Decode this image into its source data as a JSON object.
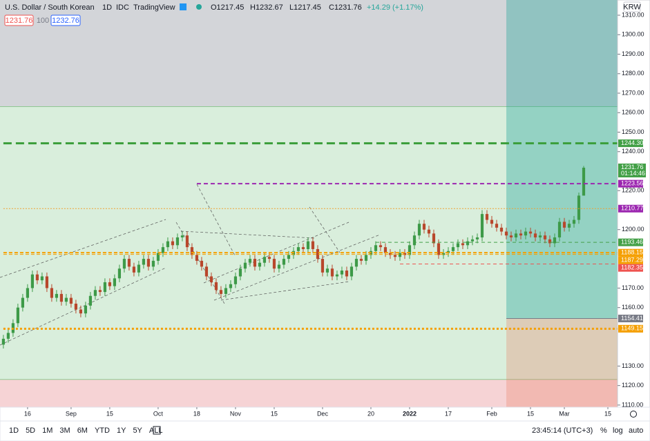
{
  "header": {
    "symbol": "U.S. Dollar / South Korean",
    "interval": "1D",
    "exchange": "IDC",
    "source": "TradingView",
    "o": "O1217.45",
    "h": "H1232.67",
    "l": "L1217.45",
    "c": "C1231.76",
    "change": "+14.29 (+1.17%)",
    "bid": "1231.76",
    "spread": "100",
    "ask": "1232.76",
    "currency": "KRW"
  },
  "toolbar": {
    "ranges": [
      "1D",
      "5D",
      "1M",
      "3M",
      "6M",
      "YTD",
      "1Y",
      "5Y",
      "ALL"
    ],
    "clock": "23:45:14 (UTC+3)",
    "percent": "%",
    "log": "log",
    "auto": "auto"
  },
  "chart_data": {
    "type": "candlestick",
    "up_color": "#3d9a48",
    "down_color": "#b8472c",
    "ohlc": [
      [
        1141,
        1146,
        1139,
        1144
      ],
      [
        1144,
        1149,
        1142,
        1147
      ],
      [
        1147,
        1154,
        1145,
        1152
      ],
      [
        1152,
        1162,
        1150,
        1160
      ],
      [
        1160,
        1167,
        1158,
        1165
      ],
      [
        1165,
        1172,
        1163,
        1170
      ],
      [
        1170,
        1179,
        1168,
        1177
      ],
      [
        1177,
        1179,
        1172,
        1174
      ],
      [
        1174,
        1178,
        1172,
        1176
      ],
      [
        1176,
        1178,
        1168,
        1170
      ],
      [
        1170,
        1172,
        1163,
        1165
      ],
      [
        1165,
        1169,
        1163,
        1167
      ],
      [
        1167,
        1169,
        1161,
        1163
      ],
      [
        1163,
        1167,
        1161,
        1165
      ],
      [
        1165,
        1167,
        1160,
        1162
      ],
      [
        1162,
        1164,
        1157,
        1159
      ],
      [
        1159,
        1161,
        1155,
        1157
      ],
      [
        1157,
        1163,
        1155,
        1161
      ],
      [
        1161,
        1168,
        1159,
        1166
      ],
      [
        1166,
        1171,
        1164,
        1169
      ],
      [
        1169,
        1171,
        1166,
        1168
      ],
      [
        1168,
        1175,
        1166,
        1173
      ],
      [
        1173,
        1175,
        1169,
        1171
      ],
      [
        1171,
        1177,
        1169,
        1175
      ],
      [
        1175,
        1182,
        1173,
        1180
      ],
      [
        1180,
        1187,
        1178,
        1185
      ],
      [
        1185,
        1187,
        1179,
        1181
      ],
      [
        1181,
        1183,
        1176,
        1178
      ],
      [
        1178,
        1184,
        1176,
        1182
      ],
      [
        1182,
        1187,
        1180,
        1185
      ],
      [
        1185,
        1187,
        1179,
        1181
      ],
      [
        1181,
        1186,
        1179,
        1184
      ],
      [
        1184,
        1190,
        1182,
        1188
      ],
      [
        1188,
        1193,
        1186,
        1191
      ],
      [
        1191,
        1196,
        1189,
        1194
      ],
      [
        1194,
        1196,
        1190,
        1192
      ],
      [
        1192,
        1198,
        1190,
        1196
      ],
      [
        1196,
        1199,
        1194,
        1197
      ],
      [
        1197,
        1199,
        1189,
        1191
      ],
      [
        1191,
        1193,
        1185,
        1187
      ],
      [
        1187,
        1189,
        1182,
        1184
      ],
      [
        1184,
        1186,
        1179,
        1181
      ],
      [
        1181,
        1183,
        1174,
        1176
      ],
      [
        1176,
        1178,
        1171,
        1173
      ],
      [
        1173,
        1175,
        1167,
        1169
      ],
      [
        1169,
        1171,
        1165,
        1167
      ],
      [
        1167,
        1172,
        1165,
        1170
      ],
      [
        1170,
        1174,
        1168,
        1172
      ],
      [
        1172,
        1178,
        1170,
        1176
      ],
      [
        1176,
        1182,
        1174,
        1180
      ],
      [
        1180,
        1185,
        1178,
        1183
      ],
      [
        1183,
        1187,
        1181,
        1185
      ],
      [
        1185,
        1187,
        1179,
        1181
      ],
      [
        1181,
        1185,
        1179,
        1183
      ],
      [
        1183,
        1188,
        1181,
        1186
      ],
      [
        1186,
        1188,
        1183,
        1185
      ],
      [
        1185,
        1187,
        1178,
        1180
      ],
      [
        1180,
        1184,
        1178,
        1182
      ],
      [
        1182,
        1187,
        1180,
        1185
      ],
      [
        1185,
        1189,
        1183,
        1187
      ],
      [
        1187,
        1191,
        1185,
        1189
      ],
      [
        1189,
        1193,
        1187,
        1191
      ],
      [
        1191,
        1193,
        1188,
        1190
      ],
      [
        1190,
        1196,
        1188,
        1194
      ],
      [
        1194,
        1196,
        1188,
        1190
      ],
      [
        1190,
        1192,
        1183,
        1185
      ],
      [
        1185,
        1187,
        1176,
        1178
      ],
      [
        1178,
        1182,
        1176,
        1180
      ],
      [
        1180,
        1182,
        1174,
        1176
      ],
      [
        1176,
        1179,
        1174,
        1177
      ],
      [
        1177,
        1181,
        1175,
        1179
      ],
      [
        1179,
        1181,
        1174,
        1176
      ],
      [
        1176,
        1183,
        1174,
        1181
      ],
      [
        1181,
        1187,
        1179,
        1185
      ],
      [
        1185,
        1187,
        1182,
        1184
      ],
      [
        1184,
        1189,
        1182,
        1187
      ],
      [
        1187,
        1191,
        1185,
        1189
      ],
      [
        1189,
        1194,
        1187,
        1192
      ],
      [
        1192,
        1194,
        1189,
        1191
      ],
      [
        1191,
        1193,
        1186,
        1188
      ],
      [
        1188,
        1190,
        1185,
        1187
      ],
      [
        1187,
        1189,
        1184,
        1186
      ],
      [
        1186,
        1190,
        1184,
        1188
      ],
      [
        1188,
        1190,
        1185,
        1187
      ],
      [
        1187,
        1194,
        1185,
        1192
      ],
      [
        1192,
        1199,
        1190,
        1197
      ],
      [
        1197,
        1205,
        1195,
        1203
      ],
      [
        1203,
        1205,
        1198,
        1200
      ],
      [
        1200,
        1202,
        1196,
        1198
      ],
      [
        1198,
        1200,
        1191,
        1193
      ],
      [
        1193,
        1195,
        1185,
        1187
      ],
      [
        1187,
        1190,
        1185,
        1188
      ],
      [
        1188,
        1191,
        1186,
        1189
      ],
      [
        1189,
        1193,
        1187,
        1191
      ],
      [
        1191,
        1195,
        1189,
        1193
      ],
      [
        1193,
        1195,
        1190,
        1192
      ],
      [
        1192,
        1196,
        1190,
        1194
      ],
      [
        1194,
        1197,
        1192,
        1195
      ],
      [
        1195,
        1198,
        1193,
        1196
      ],
      [
        1196,
        1210,
        1194,
        1208
      ],
      [
        1208,
        1210,
        1203,
        1205
      ],
      [
        1205,
        1207,
        1201,
        1203
      ],
      [
        1203,
        1205,
        1199,
        1201
      ],
      [
        1201,
        1203,
        1197,
        1199
      ],
      [
        1199,
        1201,
        1195,
        1197
      ],
      [
        1197,
        1199,
        1194,
        1196
      ],
      [
        1196,
        1200,
        1194,
        1198
      ],
      [
        1198,
        1200,
        1195,
        1197
      ],
      [
        1197,
        1201,
        1195,
        1199
      ],
      [
        1199,
        1201,
        1196,
        1198
      ],
      [
        1198,
        1200,
        1194,
        1196
      ],
      [
        1196,
        1199,
        1194,
        1197
      ],
      [
        1197,
        1199,
        1193,
        1195
      ],
      [
        1195,
        1197,
        1191,
        1193
      ],
      [
        1193,
        1198,
        1191,
        1196
      ],
      [
        1196,
        1206,
        1194,
        1204
      ],
      [
        1204,
        1206,
        1199,
        1201
      ],
      [
        1201,
        1205,
        1199,
        1203
      ],
      [
        1203,
        1207,
        1201,
        1205
      ],
      [
        1205,
        1219,
        1203,
        1217.45
      ],
      [
        1217.45,
        1232.67,
        1217.45,
        1231.76
      ]
    ],
    "xlim": [
      -0.7,
      127
    ],
    "xticks": [
      {
        "value": 5,
        "label": "16"
      },
      {
        "value": 14,
        "label": "Sep"
      },
      {
        "value": 22,
        "label": "15"
      },
      {
        "value": 32,
        "label": "Oct"
      },
      {
        "value": 40,
        "label": "18"
      },
      {
        "value": 48,
        "label": "Nov"
      },
      {
        "value": 56,
        "label": "15"
      },
      {
        "value": 66,
        "label": "Dec"
      },
      {
        "value": 76,
        "label": "20"
      },
      {
        "value": 84,
        "label": "2022"
      },
      {
        "value": 92,
        "label": "17"
      },
      {
        "value": 101,
        "label": "Feb"
      },
      {
        "value": 109,
        "label": "15"
      },
      {
        "value": 116,
        "label": "Mar"
      },
      {
        "value": 125,
        "label": "15"
      }
    ],
    "ylim": [
      1108.9,
      1317.8
    ],
    "yticks": [
      {
        "value": 1310,
        "label": "1310.00"
      },
      {
        "value": 1300,
        "label": "1300.00"
      },
      {
        "value": 1290,
        "label": "1290.00"
      },
      {
        "value": 1280,
        "label": "1280.00"
      },
      {
        "value": 1270,
        "label": "1270.00"
      },
      {
        "value": 1260,
        "label": "1260.00"
      },
      {
        "value": 1250,
        "label": "1250.00"
      },
      {
        "value": 1240,
        "label": "1240.00"
      },
      {
        "value": 1220,
        "label": "1220.00"
      },
      {
        "value": 1200,
        "label": "1200.00"
      },
      {
        "value": 1170,
        "label": "1170.00"
      },
      {
        "value": 1160,
        "label": "1160.00"
      },
      {
        "value": 1130,
        "label": "1130.00"
      },
      {
        "value": 1120,
        "label": "1120.00"
      },
      {
        "value": 1110,
        "label": "1110.00"
      }
    ],
    "zones": [
      {
        "ymin": 1263,
        "ymax": 1317.8,
        "color": "#d3d5d9",
        "border": "#4caf50"
      },
      {
        "ymin": 1123,
        "ymax": 1263,
        "color": "#d9eedc",
        "border": "#4caf50"
      },
      {
        "ymin": 1108.9,
        "ymax": 1123,
        "color": "#f6d3d5",
        "border": "#e53935"
      }
    ],
    "position": {
      "start": 104,
      "entry": 1154.41,
      "up_color": "rgba(38,166,154,0.38)",
      "down_color": "rgba(232,120,90,0.28)"
    },
    "levels": [
      {
        "value": 1244.3,
        "label": "1244.30",
        "color": "#3a9e3a",
        "tag": "#43a047",
        "dash": "12 6",
        "width": 3,
        "from": 0
      },
      {
        "value": 1223.56,
        "label": "1223.56",
        "color": "#9c27b0",
        "tag": "#9c27b0",
        "dash": "6 4",
        "width": 2,
        "from": 40
      },
      {
        "value": 1210.77,
        "label": "1210.77",
        "color": "#f0a030",
        "tag": "#9c27b0",
        "dash": "2 2",
        "width": 1,
        "from": 0
      },
      {
        "value": 1193.46,
        "label": "1193.46",
        "color": "#43a047",
        "tag": "#43a047",
        "dash": "5 4",
        "width": 1,
        "from": 77
      },
      {
        "value": 1188.15,
        "label": "1188.15",
        "color": "#f59f00",
        "tag": "#f59f00",
        "dash": "5 3",
        "width": 2,
        "from": 0
      },
      {
        "value": 1187.29,
        "label": "1187.29",
        "color": "#f59f00",
        "tag": "#f59f00",
        "dash": "5 3",
        "width": 1,
        "from": 0
      },
      {
        "value": 1182.35,
        "label": "1182.35",
        "color": "#ef5350",
        "tag": "#ef5350",
        "dash": "5 4",
        "width": 1,
        "from": 82
      },
      {
        "value": 1154.41,
        "label": "1154.41",
        "color": "#787b86",
        "tag": "#787b86",
        "dash": "",
        "width": 1,
        "from": 104
      },
      {
        "value": 1149.15,
        "label": "1149.15",
        "color": "#f59f00",
        "tag": "#f59f00",
        "dash": "3 3",
        "width": 3,
        "from": 0
      }
    ],
    "last_price": {
      "value": 1231.76,
      "label": "1231.76",
      "countdown": "01:14:46",
      "color": "#43a047"
    }
  }
}
